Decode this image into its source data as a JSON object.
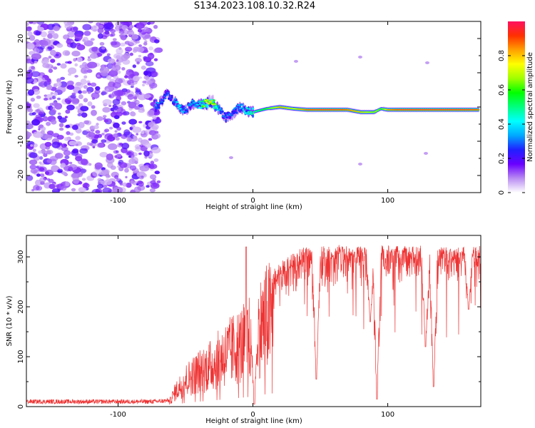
{
  "title": "S134.2023.108.10.32.R24",
  "chart_data": [
    {
      "type": "heatmap",
      "xlabel": "Height of straight line (km)",
      "ylabel": "Frequency (Hz)",
      "xlim": [
        -168,
        169
      ],
      "ylim": [
        -25,
        25
      ],
      "xticks": [
        -100,
        0,
        100
      ],
      "yticks": [
        -20,
        -10,
        0,
        10,
        20
      ],
      "colorbar": {
        "label": "Normalized spectral amplitude",
        "ticks": [
          0,
          0.2,
          0.4,
          0.6,
          0.8
        ],
        "range": [
          0,
          1
        ],
        "colormap": [
          "#ffffff",
          "#b98cf2",
          "#6a00ff",
          "#2020ff",
          "#00a8ff",
          "#00ffff",
          "#00ff80",
          "#00ff00",
          "#a0ff00",
          "#ffff00",
          "#ffa000",
          "#ff3000",
          "#ff1060"
        ]
      },
      "noise_region_x": [
        -168,
        -73
      ],
      "ridge": [
        {
          "x": -72,
          "y": 0.0,
          "a": 0.35
        },
        {
          "x": -68,
          "y": 1.5,
          "a": 0.3
        },
        {
          "x": -64,
          "y": 4.0,
          "a": 0.3
        },
        {
          "x": -60,
          "y": 2.5,
          "a": 0.25
        },
        {
          "x": -55,
          "y": 0.0,
          "a": 0.45
        },
        {
          "x": -50,
          "y": -1.0,
          "a": 0.3
        },
        {
          "x": -45,
          "y": 1.0,
          "a": 0.35
        },
        {
          "x": -40,
          "y": 0.5,
          "a": 0.4
        },
        {
          "x": -35,
          "y": 1.0,
          "a": 0.75
        },
        {
          "x": -30,
          "y": 1.5,
          "a": 0.8
        },
        {
          "x": -25,
          "y": -1.0,
          "a": 0.35
        },
        {
          "x": -20,
          "y": -3.0,
          "a": 0.3
        },
        {
          "x": -15,
          "y": -2.0,
          "a": 0.3
        },
        {
          "x": -10,
          "y": 0.0,
          "a": 0.35
        },
        {
          "x": -5,
          "y": -1.0,
          "a": 0.45
        },
        {
          "x": 0,
          "y": -1.5,
          "a": 0.5
        },
        {
          "x": 10,
          "y": -0.5,
          "a": 0.6
        },
        {
          "x": 20,
          "y": 0.0,
          "a": 0.85
        },
        {
          "x": 30,
          "y": -0.5,
          "a": 0.75
        },
        {
          "x": 40,
          "y": -0.8,
          "a": 0.9
        },
        {
          "x": 50,
          "y": -0.8,
          "a": 0.95
        },
        {
          "x": 60,
          "y": -0.8,
          "a": 0.95
        },
        {
          "x": 70,
          "y": -0.8,
          "a": 0.9
        },
        {
          "x": 80,
          "y": -1.5,
          "a": 0.8
        },
        {
          "x": 90,
          "y": -1.5,
          "a": 0.7
        },
        {
          "x": 95,
          "y": -0.5,
          "a": 0.6
        },
        {
          "x": 100,
          "y": -0.8,
          "a": 0.85
        },
        {
          "x": 110,
          "y": -0.8,
          "a": 0.95
        },
        {
          "x": 120,
          "y": -0.8,
          "a": 0.95
        },
        {
          "x": 130,
          "y": -0.8,
          "a": 0.95
        },
        {
          "x": 140,
          "y": -0.8,
          "a": 0.95
        },
        {
          "x": 150,
          "y": -0.8,
          "a": 0.95
        },
        {
          "x": 160,
          "y": -0.8,
          "a": 0.95
        },
        {
          "x": 168,
          "y": -0.8,
          "a": 0.9
        }
      ]
    },
    {
      "type": "line",
      "xlabel": "Height of straight line (km)",
      "ylabel": "SNR (10 * v/v)",
      "xlim": [
        -168,
        169
      ],
      "ylim": [
        0,
        343
      ],
      "xticks": [
        -100,
        0,
        100
      ],
      "yticks": [
        0,
        100,
        200,
        300
      ],
      "color": "#ee3333",
      "envelope": [
        {
          "x": -168,
          "y": 10
        },
        {
          "x": -75,
          "y": 10
        },
        {
          "x": -62,
          "y": 12
        },
        {
          "x": -58,
          "y": 40
        },
        {
          "x": -50,
          "y": 75
        },
        {
          "x": -40,
          "y": 100
        },
        {
          "x": -30,
          "y": 120
        },
        {
          "x": -20,
          "y": 150
        },
        {
          "x": -10,
          "y": 175
        },
        {
          "x": 0,
          "y": 200
        },
        {
          "x": 10,
          "y": 250
        },
        {
          "x": 20,
          "y": 285
        },
        {
          "x": 30,
          "y": 305
        },
        {
          "x": 40,
          "y": 315
        },
        {
          "x": 60,
          "y": 318
        },
        {
          "x": 100,
          "y": 318
        },
        {
          "x": 140,
          "y": 318
        },
        {
          "x": 169,
          "y": 318
        }
      ],
      "dips": [
        {
          "x": -5,
          "y": 320
        },
        {
          "x": 1,
          "y": 5
        },
        {
          "x": 47,
          "y": 55
        },
        {
          "x": 92,
          "y": 15
        },
        {
          "x": 87,
          "y": 170
        },
        {
          "x": 128,
          "y": 120
        },
        {
          "x": 134,
          "y": 40
        },
        {
          "x": 160,
          "y": 195
        }
      ]
    }
  ]
}
